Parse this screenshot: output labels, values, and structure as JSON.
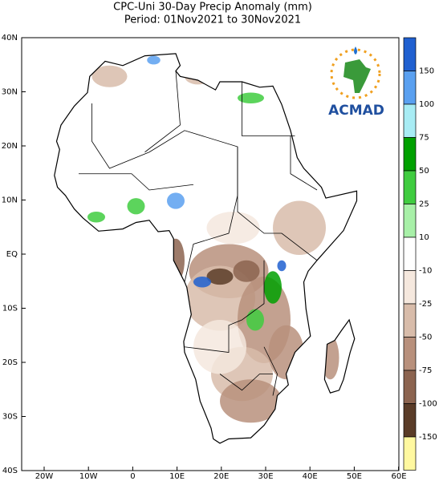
{
  "header": {
    "title_line1": "CPC-Uni 30-Day Precip Anomaly (mm)",
    "title_line2": "Period: 01Nov2021 to 30Nov2021"
  },
  "map": {
    "lon_labels": [
      "20W",
      "10W",
      "0",
      "10E",
      "20E",
      "30E",
      "40E",
      "50E",
      "60E"
    ],
    "lat_labels": [
      "40N",
      "30N",
      "20N",
      "10N",
      "EQ",
      "10S",
      "20S",
      "30S",
      "40S"
    ]
  },
  "colorbar": {
    "labels": [
      "150",
      "100",
      "75",
      "50",
      "25",
      "10",
      "-10",
      "-25",
      "-50",
      "-75",
      "-100",
      "-150"
    ],
    "colors": [
      "#2060d0",
      "#5aa0f0",
      "#a8ecf4",
      "#00a000",
      "#40cc40",
      "#a8f0a8",
      "#ffffff",
      "#f5e8de",
      "#d8bcaa",
      "#b8907c",
      "#8c6450",
      "#5a3c28",
      "#fff8a0"
    ]
  },
  "logo": {
    "text": "ACMAD"
  }
}
